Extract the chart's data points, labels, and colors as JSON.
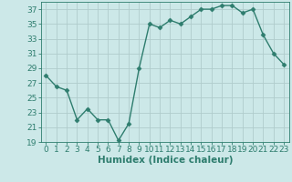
{
  "x": [
    0,
    1,
    2,
    3,
    4,
    5,
    6,
    7,
    8,
    9,
    10,
    11,
    12,
    13,
    14,
    15,
    16,
    17,
    18,
    19,
    20,
    21,
    22,
    23
  ],
  "y": [
    28,
    26.5,
    26,
    22,
    23.5,
    22,
    22,
    19.2,
    21.5,
    29,
    35,
    34.5,
    35.5,
    35,
    36,
    37,
    37,
    37.5,
    37.5,
    36.5,
    37,
    33.5,
    31,
    29.5
  ],
  "line_color": "#2e7d6e",
  "marker": "D",
  "marker_size": 2.5,
  "bg_color": "#cce8e8",
  "grid_color": "#b0cccc",
  "xlabel": "Humidex (Indice chaleur)",
  "xlim": [
    -0.5,
    23.5
  ],
  "ylim": [
    19,
    38
  ],
  "yticks": [
    19,
    21,
    23,
    25,
    27,
    29,
    31,
    33,
    35,
    37
  ],
  "xticks": [
    0,
    1,
    2,
    3,
    4,
    5,
    6,
    7,
    8,
    9,
    10,
    11,
    12,
    13,
    14,
    15,
    16,
    17,
    18,
    19,
    20,
    21,
    22,
    23
  ],
  "xlabel_fontsize": 7.5,
  "tick_fontsize": 6.5
}
